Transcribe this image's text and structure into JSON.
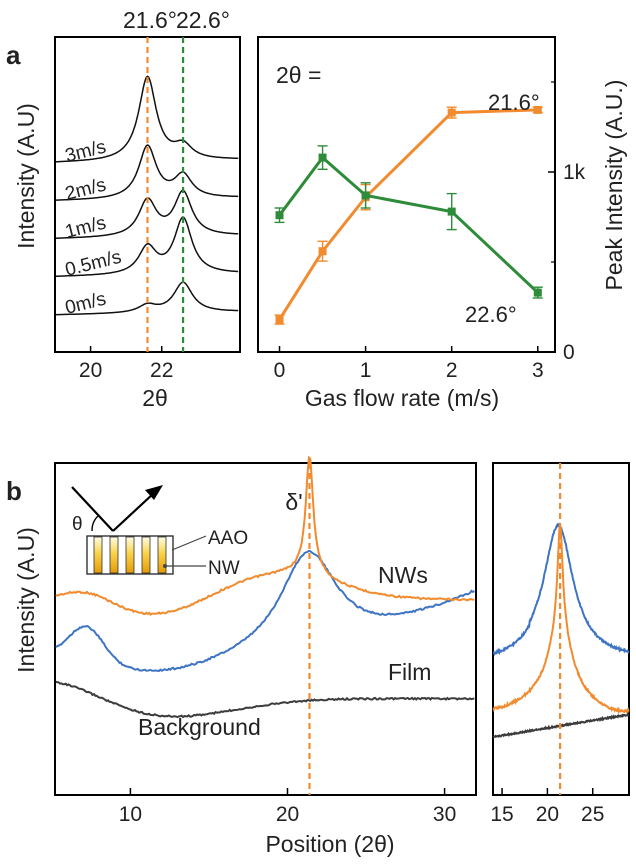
{
  "chart_data": [
    {
      "panel": "a",
      "type": "line",
      "xlabel": "2θ",
      "ylabel": "Intensity (A.U)",
      "xlim": [
        19.0,
        24.2
      ],
      "x_ticks": [
        20,
        22
      ],
      "reference_lines": [
        {
          "label": "21.6°",
          "x": 21.6,
          "color": "#F28A2E"
        },
        {
          "label": "22.6°",
          "x": 22.6,
          "color": "#2E8B3A"
        }
      ],
      "series": [
        {
          "name": "0m/s",
          "offset": 0,
          "peaks": [
            {
              "x": 21.6,
              "amp": 0.25,
              "w": 0.3
            },
            {
              "x": 22.6,
              "amp": 1.0,
              "w": 0.32
            }
          ]
        },
        {
          "name": "0.5m/s",
          "offset": 1,
          "peaks": [
            {
              "x": 21.6,
              "amp": 0.9,
              "w": 0.3
            },
            {
              "x": 22.6,
              "amp": 1.85,
              "w": 0.3
            }
          ]
        },
        {
          "name": "1m/s",
          "offset": 2,
          "peaks": [
            {
              "x": 21.6,
              "amp": 1.2,
              "w": 0.3
            },
            {
              "x": 22.6,
              "amp": 1.45,
              "w": 0.3
            }
          ]
        },
        {
          "name": "2m/s",
          "offset": 3,
          "peaks": [
            {
              "x": 21.6,
              "amp": 1.75,
              "w": 0.3
            },
            {
              "x": 22.6,
              "amp": 0.75,
              "w": 0.3
            }
          ]
        },
        {
          "name": "3m/s",
          "offset": 4,
          "peaks": [
            {
              "x": 21.6,
              "amp": 2.8,
              "w": 0.3
            },
            {
              "x": 22.6,
              "amp": 0.45,
              "w": 0.3
            }
          ]
        }
      ]
    },
    {
      "panel": "a-right",
      "type": "line",
      "annotation": "2θ =",
      "xlabel": "Gas flow rate (m/s)",
      "ylabel": "Peak Intensity (A.U.)",
      "xlim": [
        -0.25,
        3.2
      ],
      "ylim": [
        0,
        1750
      ],
      "x_ticks": [
        0,
        1,
        2,
        3
      ],
      "y_ticks": [
        0,
        1000
      ],
      "y_tick_labels": [
        "0",
        "1k"
      ],
      "series": [
        {
          "name": "21.6°",
          "color": "#F28A2E",
          "x": [
            0,
            0.5,
            1,
            2,
            3
          ],
          "y": [
            180,
            560,
            860,
            1330,
            1345
          ],
          "err": [
            25,
            55,
            70,
            30,
            15
          ]
        },
        {
          "name": "22.6°",
          "color": "#2E8B3A",
          "x": [
            0,
            0.5,
            1,
            2,
            3
          ],
          "y": [
            760,
            1080,
            870,
            780,
            330
          ],
          "err": [
            40,
            65,
            70,
            100,
            30
          ]
        }
      ]
    },
    {
      "panel": "b",
      "type": "line",
      "xlabel": "Position (2θ)",
      "ylabel": "Intensity (A.U)",
      "xlim": [
        5.2,
        32.0
      ],
      "x_ticks": [
        10,
        20,
        30
      ],
      "reference_line": {
        "label": "δ'",
        "x": 21.4,
        "color": "#F28A2E"
      },
      "inset_labels": [
        "θ",
        "AAO",
        "NW"
      ],
      "series": [
        {
          "name": "NWs",
          "color": "#F28A2E"
        },
        {
          "name": "Film",
          "color": "#3E74C4"
        },
        {
          "name": "Background",
          "color": "#3C3C3C"
        }
      ]
    },
    {
      "panel": "b-right",
      "type": "line",
      "xlim": [
        14.0,
        29.0
      ],
      "x_ticks": [
        15,
        20,
        25
      ],
      "reference_line_x": 21.4,
      "series_colors": [
        "#3E74C4",
        "#F28A2E",
        "#3C3C3C"
      ]
    }
  ]
}
